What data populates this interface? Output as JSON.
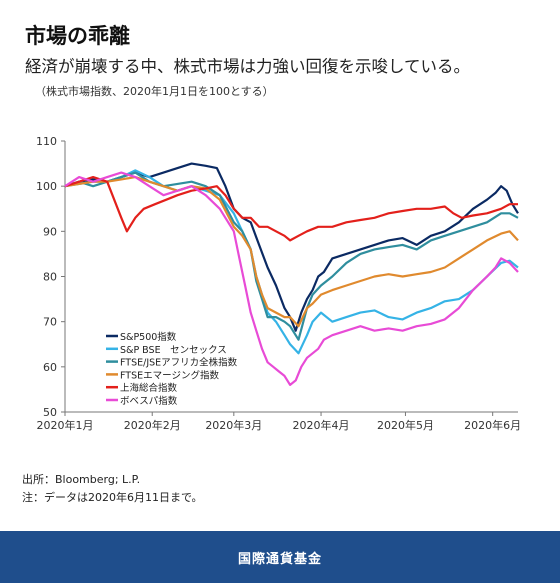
{
  "header": {
    "title": "市場の乖離",
    "subtitle": "経済が崩壊する中、株式市場は力強い回復を示唆している。",
    "note": "（株式市場指数、2020年1月1日を100とする）"
  },
  "footer": {
    "source": "出所：Bloomberg; L.P.",
    "note": "注：データは2020年6月11日まで。",
    "brand": "国際通貨基金"
  },
  "chart_data": {
    "type": "line",
    "title": "",
    "xlabel": "",
    "ylabel": "",
    "xlim": [
      0,
      161
    ],
    "ylim": [
      50,
      110
    ],
    "yticks": [
      50,
      60,
      70,
      80,
      90,
      100,
      110
    ],
    "xticks": [
      {
        "x": 0,
        "label": "2020年1月"
      },
      {
        "x": 31,
        "label": "2020年2月"
      },
      {
        "x": 60,
        "label": "2020年3月"
      },
      {
        "x": 91,
        "label": "2020年4月"
      },
      {
        "x": 121,
        "label": "2020年5月"
      },
      {
        "x": 152,
        "label": "2020年6月"
      }
    ],
    "legend_position": "bottom-left",
    "grid": false,
    "series": [
      {
        "name": "S&P500指数",
        "color": "#0b2a63",
        "points": [
          [
            0,
            100
          ],
          [
            5,
            101
          ],
          [
            10,
            101.5
          ],
          [
            15,
            101
          ],
          [
            20,
            102
          ],
          [
            25,
            103
          ],
          [
            30,
            102
          ],
          [
            35,
            103
          ],
          [
            40,
            104
          ],
          [
            45,
            105
          ],
          [
            50,
            104.5
          ],
          [
            54,
            104
          ],
          [
            57,
            100
          ],
          [
            60,
            95
          ],
          [
            63,
            93
          ],
          [
            66,
            92
          ],
          [
            69,
            87
          ],
          [
            72,
            82
          ],
          [
            75,
            78
          ],
          [
            78,
            73
          ],
          [
            80,
            71
          ],
          [
            82,
            68
          ],
          [
            84,
            72
          ],
          [
            86,
            75
          ],
          [
            88,
            77
          ],
          [
            90,
            80
          ],
          [
            92,
            81
          ],
          [
            95,
            84
          ],
          [
            100,
            85
          ],
          [
            105,
            86
          ],
          [
            110,
            87
          ],
          [
            115,
            88
          ],
          [
            120,
            88.5
          ],
          [
            125,
            87
          ],
          [
            130,
            89
          ],
          [
            135,
            90
          ],
          [
            140,
            92
          ],
          [
            145,
            95
          ],
          [
            150,
            97
          ],
          [
            153,
            98.5
          ],
          [
            155,
            100
          ],
          [
            157,
            99
          ],
          [
            159,
            96
          ],
          [
            161,
            94
          ]
        ]
      },
      {
        "name": "S&P BSE　センセックス",
        "color": "#35b3e6",
        "points": [
          [
            0,
            100
          ],
          [
            5,
            100.5
          ],
          [
            10,
            101
          ],
          [
            15,
            101
          ],
          [
            20,
            102
          ],
          [
            25,
            103.5
          ],
          [
            30,
            102
          ],
          [
            35,
            100
          ],
          [
            40,
            99
          ],
          [
            45,
            100
          ],
          [
            50,
            99
          ],
          [
            55,
            98
          ],
          [
            60,
            94
          ],
          [
            63,
            90
          ],
          [
            66,
            86
          ],
          [
            68,
            80
          ],
          [
            70,
            76
          ],
          [
            72,
            72
          ],
          [
            75,
            70
          ],
          [
            78,
            67
          ],
          [
            80,
            65
          ],
          [
            83,
            63
          ],
          [
            86,
            67
          ],
          [
            88,
            70
          ],
          [
            91,
            72
          ],
          [
            95,
            70
          ],
          [
            100,
            71
          ],
          [
            105,
            72
          ],
          [
            110,
            72.5
          ],
          [
            115,
            71
          ],
          [
            120,
            70.5
          ],
          [
            125,
            72
          ],
          [
            130,
            73
          ],
          [
            135,
            74.5
          ],
          [
            140,
            75
          ],
          [
            145,
            77
          ],
          [
            150,
            80
          ],
          [
            155,
            83
          ],
          [
            158,
            83.5
          ],
          [
            161,
            82
          ]
        ]
      },
      {
        "name": "FTSE/JSEアフリカ全株指数",
        "color": "#2f8e9e",
        "points": [
          [
            0,
            100
          ],
          [
            5,
            101
          ],
          [
            10,
            100
          ],
          [
            15,
            101
          ],
          [
            20,
            102
          ],
          [
            25,
            103
          ],
          [
            30,
            101
          ],
          [
            35,
            100
          ],
          [
            40,
            100.5
          ],
          [
            45,
            101
          ],
          [
            50,
            100
          ],
          [
            55,
            98
          ],
          [
            60,
            92
          ],
          [
            63,
            90
          ],
          [
            66,
            86
          ],
          [
            68,
            79
          ],
          [
            70,
            75
          ],
          [
            72,
            71
          ],
          [
            75,
            71
          ],
          [
            78,
            70
          ],
          [
            80,
            69
          ],
          [
            83,
            66
          ],
          [
            86,
            73
          ],
          [
            88,
            76
          ],
          [
            91,
            78
          ],
          [
            95,
            80
          ],
          [
            100,
            83
          ],
          [
            105,
            85
          ],
          [
            110,
            86
          ],
          [
            115,
            86.5
          ],
          [
            120,
            87
          ],
          [
            125,
            86
          ],
          [
            130,
            88
          ],
          [
            135,
            89
          ],
          [
            140,
            90
          ],
          [
            145,
            91
          ],
          [
            150,
            92
          ],
          [
            155,
            94
          ],
          [
            158,
            94
          ],
          [
            161,
            93
          ]
        ]
      },
      {
        "name": "FTSEエマージング指数",
        "color": "#e08a2e",
        "points": [
          [
            0,
            100
          ],
          [
            5,
            100.5
          ],
          [
            10,
            101
          ],
          [
            15,
            101
          ],
          [
            20,
            101.5
          ],
          [
            25,
            102
          ],
          [
            30,
            101
          ],
          [
            35,
            100
          ],
          [
            40,
            99
          ],
          [
            45,
            100
          ],
          [
            50,
            99.5
          ],
          [
            55,
            97
          ],
          [
            60,
            91
          ],
          [
            63,
            89
          ],
          [
            66,
            86
          ],
          [
            68,
            80
          ],
          [
            70,
            76
          ],
          [
            72,
            73
          ],
          [
            75,
            72
          ],
          [
            78,
            71
          ],
          [
            80,
            71
          ],
          [
            83,
            69
          ],
          [
            86,
            73
          ],
          [
            88,
            74
          ],
          [
            91,
            76
          ],
          [
            95,
            77
          ],
          [
            100,
            78
          ],
          [
            105,
            79
          ],
          [
            110,
            80
          ],
          [
            115,
            80.5
          ],
          [
            120,
            80
          ],
          [
            125,
            80.5
          ],
          [
            130,
            81
          ],
          [
            135,
            82
          ],
          [
            140,
            84
          ],
          [
            145,
            86
          ],
          [
            150,
            88
          ],
          [
            155,
            89.5
          ],
          [
            158,
            90
          ],
          [
            161,
            88
          ]
        ]
      },
      {
        "name": "上海総合指数",
        "color": "#e3201b",
        "points": [
          [
            0,
            100
          ],
          [
            5,
            101
          ],
          [
            10,
            102
          ],
          [
            15,
            101
          ],
          [
            20,
            93
          ],
          [
            22,
            90
          ],
          [
            25,
            93
          ],
          [
            28,
            95
          ],
          [
            32,
            96
          ],
          [
            36,
            97
          ],
          [
            40,
            98
          ],
          [
            45,
            99
          ],
          [
            50,
            99.5
          ],
          [
            54,
            100
          ],
          [
            57,
            98
          ],
          [
            60,
            95
          ],
          [
            63,
            93
          ],
          [
            66,
            93
          ],
          [
            69,
            91
          ],
          [
            72,
            91
          ],
          [
            75,
            90
          ],
          [
            78,
            89
          ],
          [
            80,
            88
          ],
          [
            83,
            89
          ],
          [
            86,
            90
          ],
          [
            90,
            91
          ],
          [
            95,
            91
          ],
          [
            100,
            92
          ],
          [
            105,
            92.5
          ],
          [
            110,
            93
          ],
          [
            115,
            94
          ],
          [
            120,
            94.5
          ],
          [
            125,
            95
          ],
          [
            130,
            95
          ],
          [
            135,
            95.5
          ],
          [
            138,
            94
          ],
          [
            141,
            93
          ],
          [
            145,
            93.5
          ],
          [
            150,
            94
          ],
          [
            155,
            95
          ],
          [
            158,
            96
          ],
          [
            161,
            96
          ]
        ]
      },
      {
        "name": "ボベスパ指数",
        "color": "#e84bd6",
        "points": [
          [
            0,
            100
          ],
          [
            5,
            102
          ],
          [
            10,
            101
          ],
          [
            15,
            102
          ],
          [
            20,
            103
          ],
          [
            25,
            102
          ],
          [
            30,
            100
          ],
          [
            35,
            98
          ],
          [
            40,
            99
          ],
          [
            45,
            100
          ],
          [
            50,
            98
          ],
          [
            55,
            95
          ],
          [
            60,
            90
          ],
          [
            62,
            84
          ],
          [
            64,
            78
          ],
          [
            66,
            72
          ],
          [
            68,
            68
          ],
          [
            70,
            64
          ],
          [
            72,
            61
          ],
          [
            74,
            60
          ],
          [
            76,
            59
          ],
          [
            78,
            58
          ],
          [
            80,
            56
          ],
          [
            82,
            57
          ],
          [
            84,
            60
          ],
          [
            86,
            62
          ],
          [
            88,
            63
          ],
          [
            90,
            64
          ],
          [
            92,
            66
          ],
          [
            95,
            67
          ],
          [
            100,
            68
          ],
          [
            105,
            69
          ],
          [
            110,
            68
          ],
          [
            115,
            68.5
          ],
          [
            120,
            68
          ],
          [
            125,
            69
          ],
          [
            130,
            69.5
          ],
          [
            135,
            70.5
          ],
          [
            140,
            73
          ],
          [
            145,
            77
          ],
          [
            150,
            80
          ],
          [
            153,
            82
          ],
          [
            155,
            84
          ],
          [
            158,
            83
          ],
          [
            161,
            81
          ]
        ]
      }
    ]
  }
}
